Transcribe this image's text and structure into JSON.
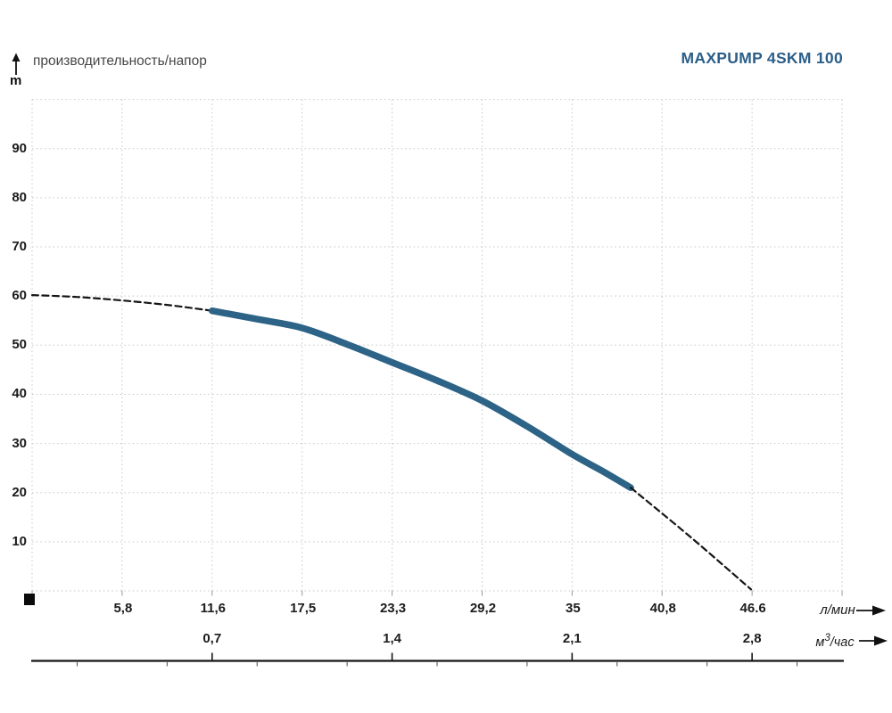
{
  "colors": {
    "title": "#2a5e88",
    "curve": "#2d6386",
    "dashed_curve": "#151515",
    "grid": "#c6c6c6",
    "axis_line": "#161616",
    "text": "#1b1b1b"
  },
  "chart_data": {
    "type": "line",
    "title": "MAXPUMP 4SKM 100",
    "y_axis": {
      "title": "производительность/напор",
      "unit": "m",
      "range": [
        0,
        100
      ],
      "tick_step": 10,
      "ticks": [
        {
          "value": 10,
          "label": "10"
        },
        {
          "value": 20,
          "label": "20"
        },
        {
          "value": 30,
          "label": "30"
        },
        {
          "value": 40,
          "label": "40"
        },
        {
          "value": 50,
          "label": "50"
        },
        {
          "value": 60,
          "label": "60"
        },
        {
          "value": 70,
          "label": "70"
        },
        {
          "value": 80,
          "label": "80"
        },
        {
          "value": 90,
          "label": "90"
        }
      ],
      "grid": true
    },
    "x_axis_lmin": {
      "unit": "л/мин",
      "range": [
        0,
        52.5
      ],
      "ticks": [
        {
          "value": 5.8333,
          "label": "5,8"
        },
        {
          "value": 11.6667,
          "label": "11,6"
        },
        {
          "value": 17.5,
          "label": "17,5"
        },
        {
          "value": 23.3333,
          "label": "23,3"
        },
        {
          "value": 29.1667,
          "label": "29,2"
        },
        {
          "value": 35,
          "label": "35"
        },
        {
          "value": 40.8333,
          "label": "40,8"
        },
        {
          "value": 46.6667,
          "label": "46.6"
        }
      ],
      "grid": true
    },
    "x_axis_m3h": {
      "unit_base": "м",
      "unit_sup": "3",
      "unit_rest": "/час",
      "range": [
        0,
        3.15
      ],
      "ticks": [
        {
          "value": 0.7,
          "label": "0,7"
        },
        {
          "value": 1.4,
          "label": "1,4"
        },
        {
          "value": 2.1,
          "label": "2,1"
        },
        {
          "value": 2.8,
          "label": "2,8"
        }
      ]
    },
    "series": [
      {
        "name": "head-curve-extrapolated-low-flow",
        "style": "dashed",
        "width": 2.2,
        "points_q_lmin_h_m": [
          [
            0,
            60.2
          ],
          [
            3,
            59.8
          ],
          [
            5.83,
            59.1
          ],
          [
            8.75,
            58.2
          ],
          [
            11.6667,
            57.0
          ]
        ]
      },
      {
        "name": "head-curve-operating-range",
        "style": "solid",
        "width": 7.5,
        "points_q_lmin_h_m": [
          [
            11.6667,
            57.0
          ],
          [
            14.58,
            55.3
          ],
          [
            17.5,
            53.5
          ],
          [
            20.4,
            50.2
          ],
          [
            23.33,
            46.5
          ],
          [
            26.25,
            42.8
          ],
          [
            29.17,
            38.7
          ],
          [
            32.08,
            33.5
          ],
          [
            35,
            27.8
          ],
          [
            36.9,
            24.5
          ],
          [
            38.8,
            21.0
          ]
        ]
      },
      {
        "name": "head-curve-extrapolated-high-flow",
        "style": "dashed",
        "width": 2.2,
        "points_q_lmin_h_m": [
          [
            38.8,
            21.0
          ],
          [
            42.7,
            10.9
          ],
          [
            46.6,
            0.3
          ]
        ]
      }
    ]
  }
}
